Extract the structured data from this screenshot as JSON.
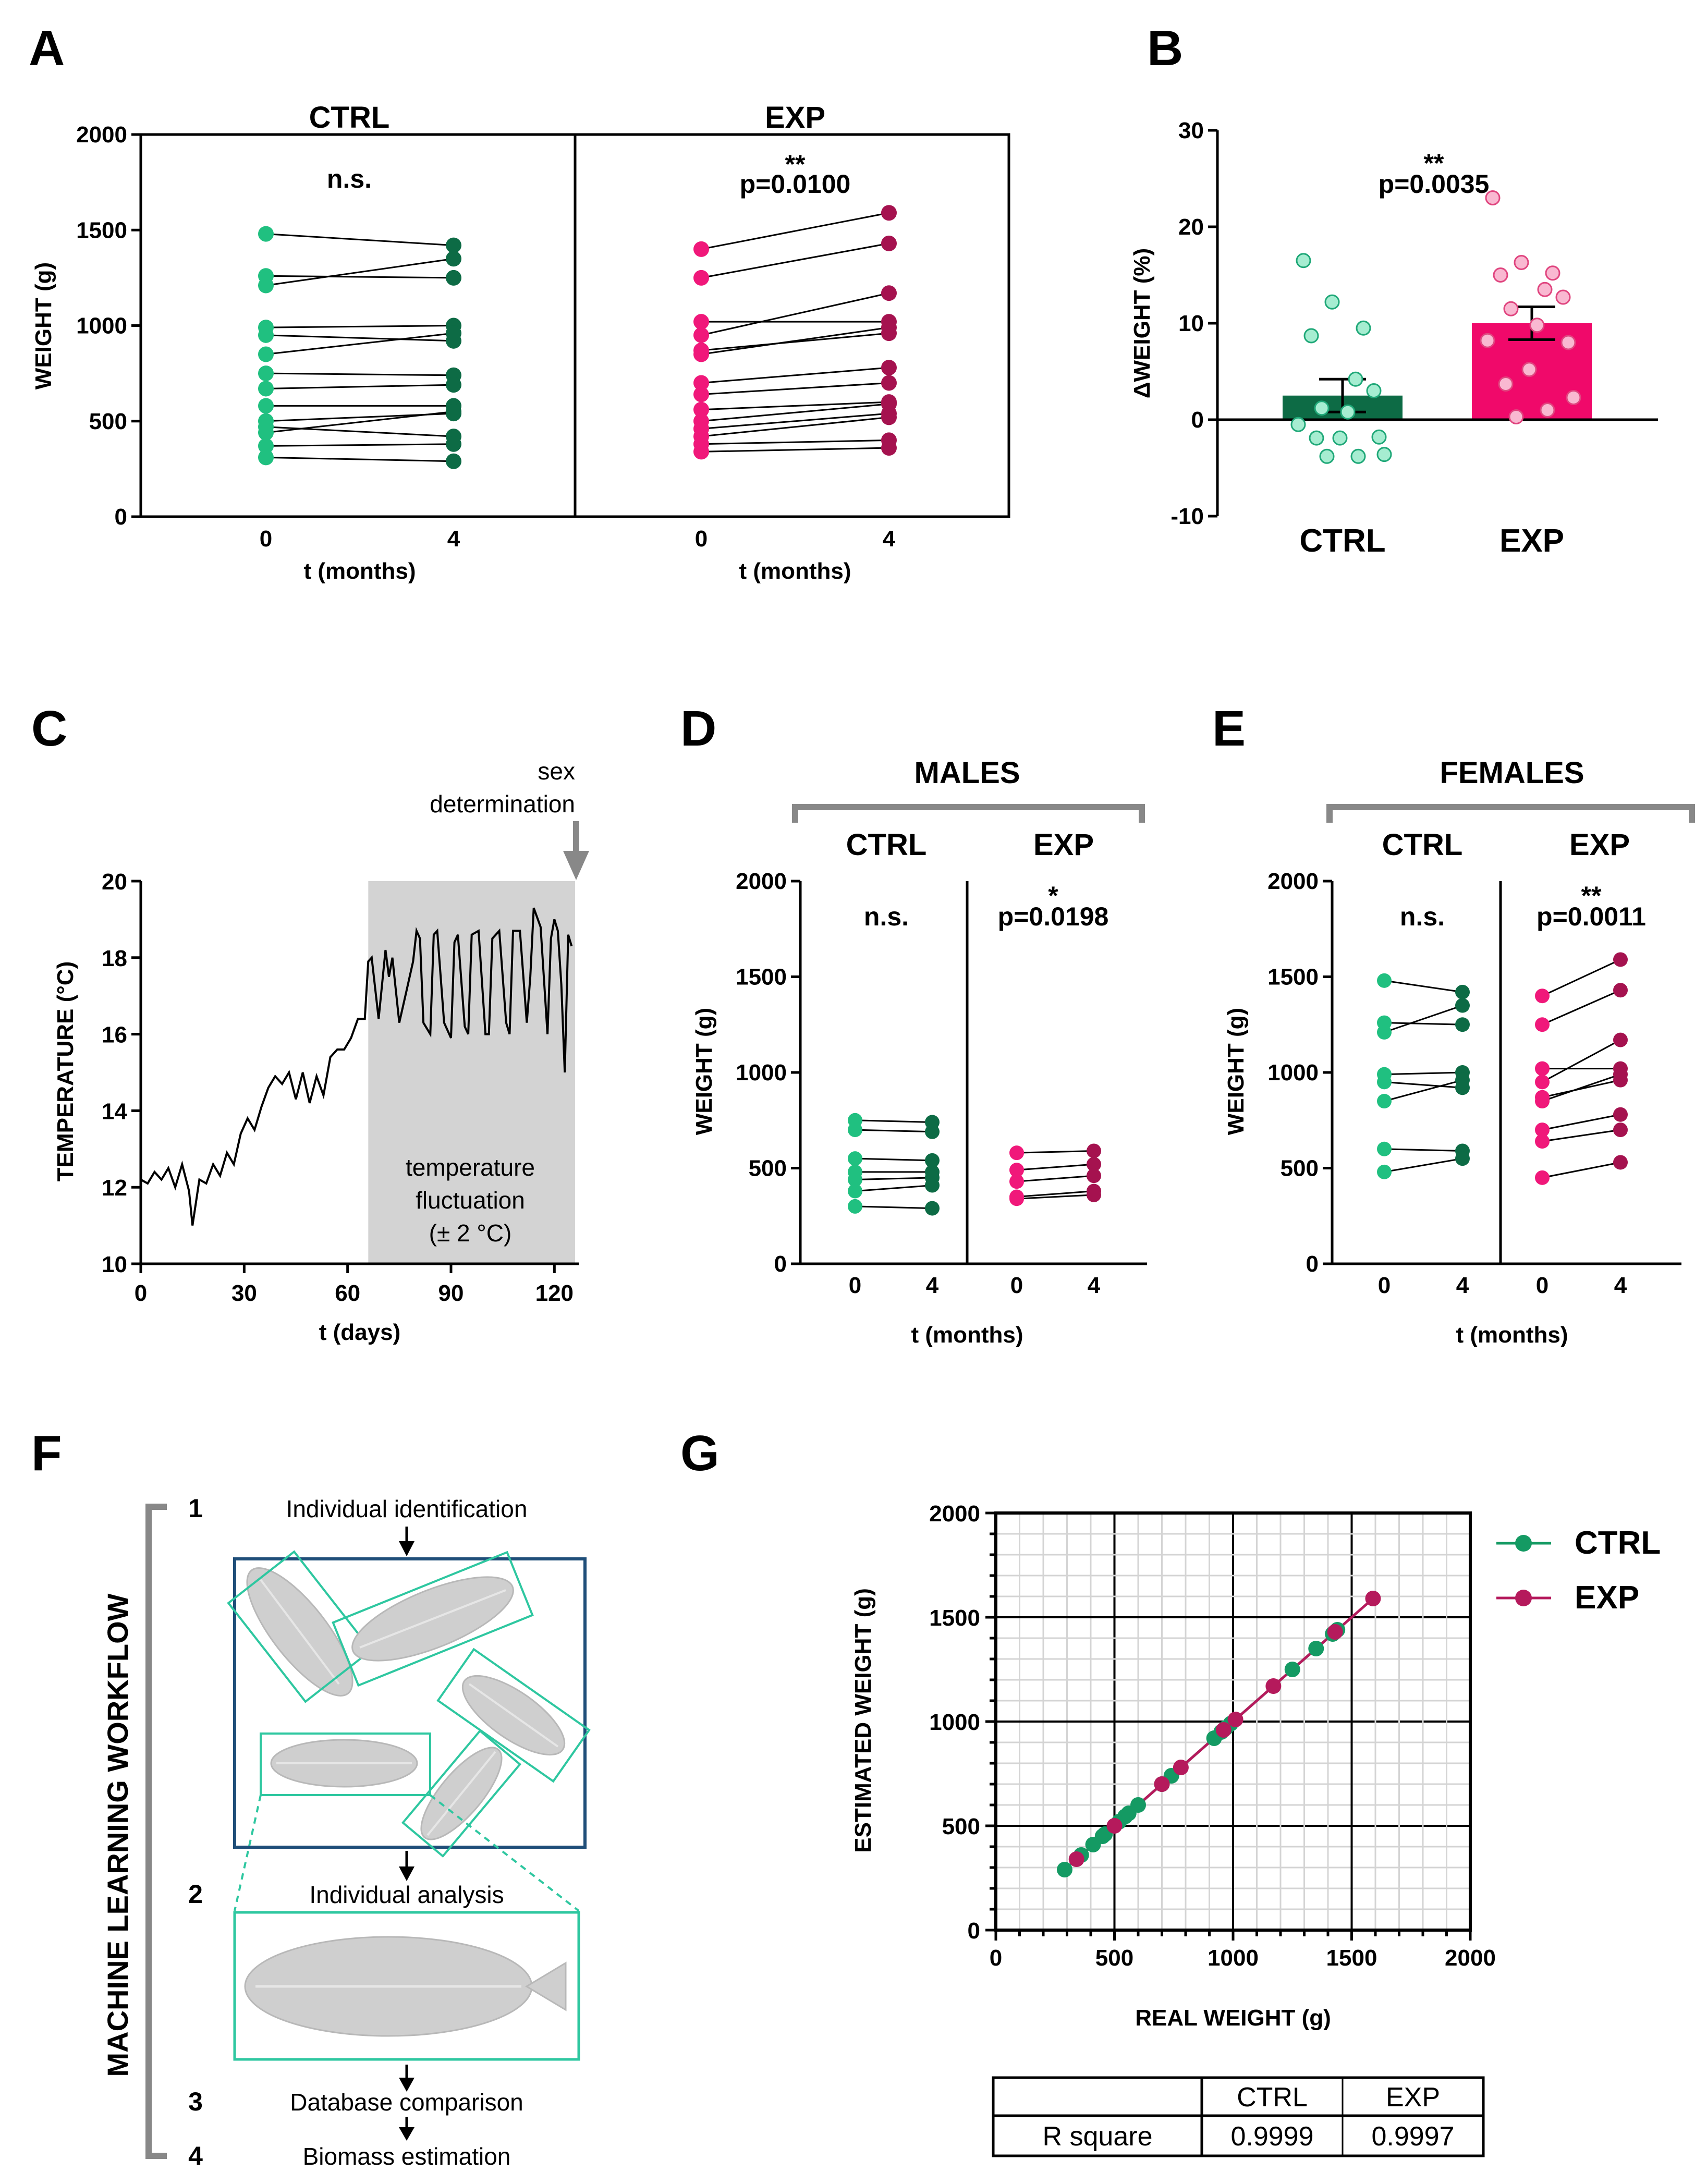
{
  "colors": {
    "ctrl_light": "#20c080",
    "ctrl_dark": "#0d6b45",
    "exp_light": "#f0187a",
    "exp_dark": "#a5124f",
    "ctrl_bar": "#0d6b45",
    "exp_bar": "#f0096a",
    "ctrl_dot": "#a6edd1",
    "exp_dot": "#f9b8d1",
    "shade": "#d3d3d3",
    "bracket": "#888888",
    "box_blue": "#1f4e79",
    "box_green": "#2ec7a0",
    "g_ctrl": "#149a63",
    "g_exp": "#b51a5c"
  },
  "panel_labels": {
    "a": "A",
    "b": "B",
    "c": "C",
    "d": "D",
    "e": "E",
    "f": "F",
    "g": "G"
  },
  "panelA": {
    "titles": {
      "ctrl": "CTRL",
      "exp": "EXP"
    },
    "ylabel": "WEIGHT (g)",
    "xlabel": "t (months)",
    "yticks": [
      "0",
      "500",
      "1000",
      "1500",
      "2000"
    ],
    "xticks": [
      "0",
      "4"
    ],
    "ctrl_stat": "n.s.",
    "exp_stars": "**",
    "exp_p": "p=0.0100"
  },
  "panelB": {
    "ylabel": "ΔWEIGHT (%)",
    "yticks": [
      "-10",
      "0",
      "10",
      "20",
      "30"
    ],
    "categories": [
      "CTRL",
      "EXP"
    ],
    "stars": "**",
    "p": "p=0.0035"
  },
  "panelC": {
    "ylabel": "TEMPERATURE (°C)",
    "xlabel": "t (days)",
    "yticks": [
      "10",
      "12",
      "14",
      "16",
      "18",
      "20"
    ],
    "xticks": [
      "0",
      "30",
      "60",
      "90",
      "120"
    ],
    "arrow_label_1": "sex",
    "arrow_label_2": "determination",
    "shade_label_1": "temperature",
    "shade_label_2": "fluctuation",
    "shade_label_3": "(± 2 °C)"
  },
  "panelD": {
    "title": "MALES",
    "sub_ctrl": "CTRL",
    "sub_exp": "EXP",
    "ylabel": "WEIGHT (g)",
    "xlabel": "t (months)",
    "yticks": [
      "0",
      "500",
      "1000",
      "1500",
      "2000"
    ],
    "xticks": [
      "0",
      "4"
    ],
    "ctrl_stat": "n.s.",
    "exp_stars": "*",
    "exp_p": "p=0.0198"
  },
  "panelE": {
    "title": "FEMALES",
    "sub_ctrl": "CTRL",
    "sub_exp": "EXP",
    "ylabel": "WEIGHT (g)",
    "xlabel": "t (months)",
    "yticks": [
      "0",
      "500",
      "1000",
      "1500",
      "2000"
    ],
    "xticks": [
      "0",
      "4"
    ],
    "ctrl_stat": "n.s.",
    "exp_stars": "**",
    "exp_p": "p=0.0011"
  },
  "panelF": {
    "vertical_title": "MACHINE LEARNING WORKFLOW",
    "steps": [
      {
        "num": "1",
        "label": "Individual identification"
      },
      {
        "num": "2",
        "label": "Individual analysis"
      },
      {
        "num": "3",
        "label": "Database comparison"
      },
      {
        "num": "4",
        "label": "Biomass estimation"
      }
    ]
  },
  "panelG": {
    "ylabel": "ESTIMATED WEIGHT (g)",
    "xlabel": "REAL WEIGHT (g)",
    "ticks": [
      "0",
      "500",
      "1000",
      "1500",
      "2000"
    ],
    "legend": [
      "CTRL",
      "EXP"
    ],
    "table": {
      "headers": [
        "",
        "CTRL",
        "EXP"
      ],
      "row_label": "R square",
      "values": [
        "0.9999",
        "0.9997"
      ]
    }
  },
  "chart_data": [
    {
      "panel": "A",
      "type": "scatter",
      "title": "CTRL",
      "xlabel": "t (months)",
      "ylabel": "WEIGHT (g)",
      "ylim": [
        0,
        2000
      ],
      "x": [
        0,
        4
      ],
      "paired": [
        [
          1480,
          1420
        ],
        [
          1260,
          1250
        ],
        [
          1210,
          1350
        ],
        [
          990,
          1000
        ],
        [
          950,
          920
        ],
        [
          850,
          960
        ],
        [
          750,
          740
        ],
        [
          670,
          690
        ],
        [
          580,
          580
        ],
        [
          500,
          540
        ],
        [
          470,
          420
        ],
        [
          440,
          550
        ],
        [
          370,
          380
        ],
        [
          310,
          290
        ]
      ]
    },
    {
      "panel": "A",
      "type": "scatter",
      "title": "EXP",
      "xlabel": "t (months)",
      "ylabel": "WEIGHT (g)",
      "ylim": [
        0,
        2000
      ],
      "x": [
        0,
        4
      ],
      "annotation": "p=0.0100",
      "paired": [
        [
          1400,
          1590
        ],
        [
          1250,
          1430
        ],
        [
          1020,
          1020
        ],
        [
          950,
          1170
        ],
        [
          870,
          960
        ],
        [
          850,
          990
        ],
        [
          700,
          780
        ],
        [
          640,
          700
        ],
        [
          560,
          600
        ],
        [
          500,
          590
        ],
        [
          460,
          540
        ],
        [
          420,
          520
        ],
        [
          380,
          400
        ],
        [
          340,
          360
        ]
      ]
    },
    {
      "panel": "B",
      "type": "bar",
      "categories": [
        "CTRL",
        "EXP"
      ],
      "values": [
        2.5,
        10.0
      ],
      "errors": [
        1.7,
        1.7
      ],
      "ylabel": "ΔWEIGHT (%)",
      "ylim": [
        -10,
        30
      ],
      "annotation": "p=0.0035",
      "points": {
        "CTRL": [
          16.5,
          12.2,
          9.5,
          8.7,
          4.2,
          3.0,
          1.2,
          0.8,
          -0.5,
          -1.8,
          -1.9,
          -1.9,
          -3.6,
          -3.8,
          -3.8
        ],
        "EXP": [
          23.0,
          16.3,
          15.2,
          15.0,
          13.5,
          12.7,
          11.5,
          9.8,
          8.2,
          8.0,
          5.2,
          3.7,
          2.3,
          1.0,
          0.3
        ]
      }
    },
    {
      "panel": "C",
      "type": "line",
      "xlabel": "t (days)",
      "ylabel": "TEMPERATURE (°C)",
      "xlim": [
        0,
        126
      ],
      "ylim": [
        10,
        20
      ],
      "shaded_range": [
        66,
        126
      ],
      "x": [
        0,
        2,
        4,
        6,
        8,
        10,
        12,
        14,
        15,
        17,
        19,
        21,
        23,
        25,
        27,
        29,
        31,
        33,
        35,
        37,
        39,
        41,
        43,
        45,
        47,
        49,
        51,
        53,
        55,
        57,
        59,
        61,
        63,
        65,
        66,
        67,
        69,
        71,
        72,
        73,
        75,
        77,
        79,
        80,
        81,
        82,
        84,
        85,
        86,
        88,
        90,
        91,
        92,
        94,
        95,
        96,
        98,
        100,
        101,
        102,
        104,
        106,
        107,
        108,
        110,
        112,
        113,
        114,
        116,
        118,
        119,
        120,
        121,
        122,
        123,
        124,
        125
      ],
      "y": [
        12.2,
        12.1,
        12.4,
        12.2,
        12.5,
        12.0,
        12.6,
        11.9,
        11.0,
        12.2,
        12.1,
        12.6,
        12.3,
        12.9,
        12.6,
        13.4,
        13.8,
        13.5,
        14.1,
        14.6,
        14.9,
        14.7,
        15.0,
        14.3,
        15.0,
        14.2,
        14.9,
        14.4,
        15.4,
        15.6,
        15.6,
        15.9,
        16.4,
        16.4,
        17.9,
        18.0,
        16.4,
        18.2,
        17.5,
        18.0,
        16.3,
        17.1,
        17.9,
        18.7,
        18.5,
        16.3,
        16.0,
        18.6,
        18.7,
        16.3,
        15.9,
        18.4,
        18.6,
        16.2,
        16.0,
        18.6,
        18.7,
        16.0,
        16.0,
        18.5,
        18.7,
        16.3,
        16.0,
        18.7,
        18.7,
        16.3,
        17.5,
        19.3,
        18.8,
        16.0,
        18.5,
        19.0,
        18.7,
        17.3,
        15.0,
        18.6,
        18.3
      ]
    },
    {
      "panel": "D",
      "type": "scatter",
      "title": "MALES",
      "series": [
        {
          "name": "CTRL",
          "paired": [
            [
              750,
              740
            ],
            [
              700,
              690
            ],
            [
              550,
              540
            ],
            [
              480,
              480
            ],
            [
              440,
              450
            ],
            [
              380,
              410
            ],
            [
              300,
              290
            ]
          ]
        },
        {
          "name": "EXP",
          "paired": [
            [
              580,
              590
            ],
            [
              490,
              520
            ],
            [
              430,
              460
            ],
            [
              350,
              380
            ],
            [
              340,
              360
            ]
          ],
          "annotation": "p=0.0198"
        }
      ],
      "xlabel": "t (months)",
      "ylabel": "WEIGHT (g)",
      "ylim": [
        0,
        2000
      ]
    },
    {
      "panel": "E",
      "type": "scatter",
      "title": "FEMALES",
      "series": [
        {
          "name": "CTRL",
          "paired": [
            [
              1480,
              1420
            ],
            [
              1260,
              1250
            ],
            [
              1210,
              1350
            ],
            [
              990,
              1000
            ],
            [
              950,
              920
            ],
            [
              850,
              960
            ],
            [
              600,
              590
            ],
            [
              480,
              550
            ]
          ]
        },
        {
          "name": "EXP",
          "paired": [
            [
              1400,
              1590
            ],
            [
              1250,
              1430
            ],
            [
              1020,
              1020
            ],
            [
              950,
              1170
            ],
            [
              870,
              960
            ],
            [
              850,
              990
            ],
            [
              700,
              780
            ],
            [
              640,
              700
            ],
            [
              450,
              530
            ]
          ],
          "annotation": "p=0.0011"
        }
      ],
      "xlabel": "t (months)",
      "ylabel": "WEIGHT (g)",
      "ylim": [
        0,
        2000
      ]
    },
    {
      "panel": "G",
      "type": "scatter",
      "xlabel": "REAL WEIGHT (g)",
      "ylabel": "ESTIMATED WEIGHT (g)",
      "xlim": [
        0,
        2000
      ],
      "ylim": [
        0,
        2000
      ],
      "series": [
        {
          "name": "CTRL",
          "x": [
            290,
            360,
            410,
            450,
            460,
            520,
            545,
            560,
            600,
            700,
            740,
            920,
            950,
            970,
            990,
            1250,
            1350,
            1420,
            1440
          ],
          "y": [
            290,
            360,
            410,
            450,
            460,
            520,
            545,
            560,
            600,
            700,
            740,
            920,
            950,
            970,
            990,
            1250,
            1350,
            1420,
            1440
          ]
        },
        {
          "name": "EXP",
          "x": [
            340,
            500,
            700,
            780,
            960,
            1010,
            1170,
            1430,
            1590
          ],
          "y": [
            340,
            500,
            700,
            780,
            960,
            1010,
            1170,
            1430,
            1590
          ]
        }
      ],
      "r_square": {
        "CTRL": "0.9999",
        "EXP": "0.9997"
      }
    }
  ]
}
